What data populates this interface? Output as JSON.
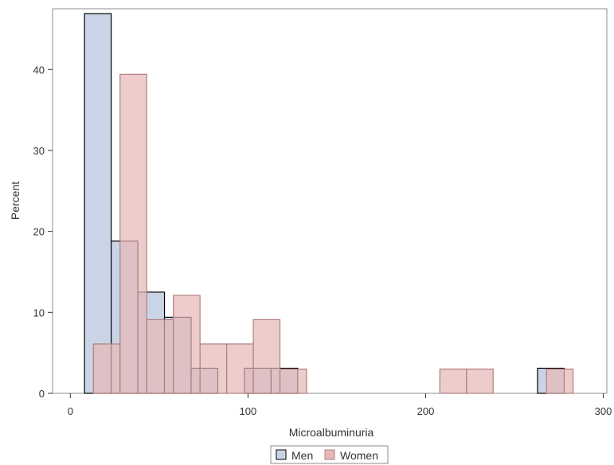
{
  "chart_data": {
    "type": "bar",
    "subtype": "overlaid-histogram",
    "title": "",
    "xlabel": "Microalbuminuria",
    "ylabel": "Percent",
    "xlim": [
      -10,
      302
    ],
    "ylim": [
      0,
      47.5
    ],
    "xticks": [
      0,
      100,
      200,
      300
    ],
    "yticks": [
      0,
      10,
      20,
      30,
      40
    ],
    "grid": false,
    "legend_position": "bottom-center",
    "series": [
      {
        "name": "Men",
        "fill": "#c9d5e6",
        "stroke": "#000000",
        "bins": [
          {
            "x0": 8,
            "x1": 23,
            "value": 46.9
          },
          {
            "x0": 23,
            "x1": 38,
            "value": 18.8
          },
          {
            "x0": 38,
            "x1": 53,
            "value": 12.5
          },
          {
            "x0": 53,
            "x1": 68,
            "value": 9.4
          },
          {
            "x0": 68,
            "x1": 83,
            "value": 3.1
          },
          {
            "x0": 98,
            "x1": 113,
            "value": 3.1
          },
          {
            "x0": 113,
            "x1": 128,
            "value": 3.1
          },
          {
            "x0": 263,
            "x1": 278,
            "value": 3.1
          }
        ]
      },
      {
        "name": "Women",
        "fill": "#e7b7b7",
        "stroke": "#b07f7f",
        "bins": [
          {
            "x0": 13,
            "x1": 28,
            "value": 6.1
          },
          {
            "x0": 28,
            "x1": 43,
            "value": 39.4
          },
          {
            "x0": 43,
            "x1": 58,
            "value": 9.1
          },
          {
            "x0": 58,
            "x1": 73,
            "value": 12.1
          },
          {
            "x0": 73,
            "x1": 88,
            "value": 6.1
          },
          {
            "x0": 88,
            "x1": 103,
            "value": 6.1
          },
          {
            "x0": 103,
            "x1": 118,
            "value": 9.1
          },
          {
            "x0": 118,
            "x1": 133,
            "value": 3.0
          },
          {
            "x0": 208,
            "x1": 223,
            "value": 3.0
          },
          {
            "x0": 223,
            "x1": 238,
            "value": 3.0
          },
          {
            "x0": 268,
            "x1": 283,
            "value": 3.0
          }
        ]
      }
    ]
  }
}
